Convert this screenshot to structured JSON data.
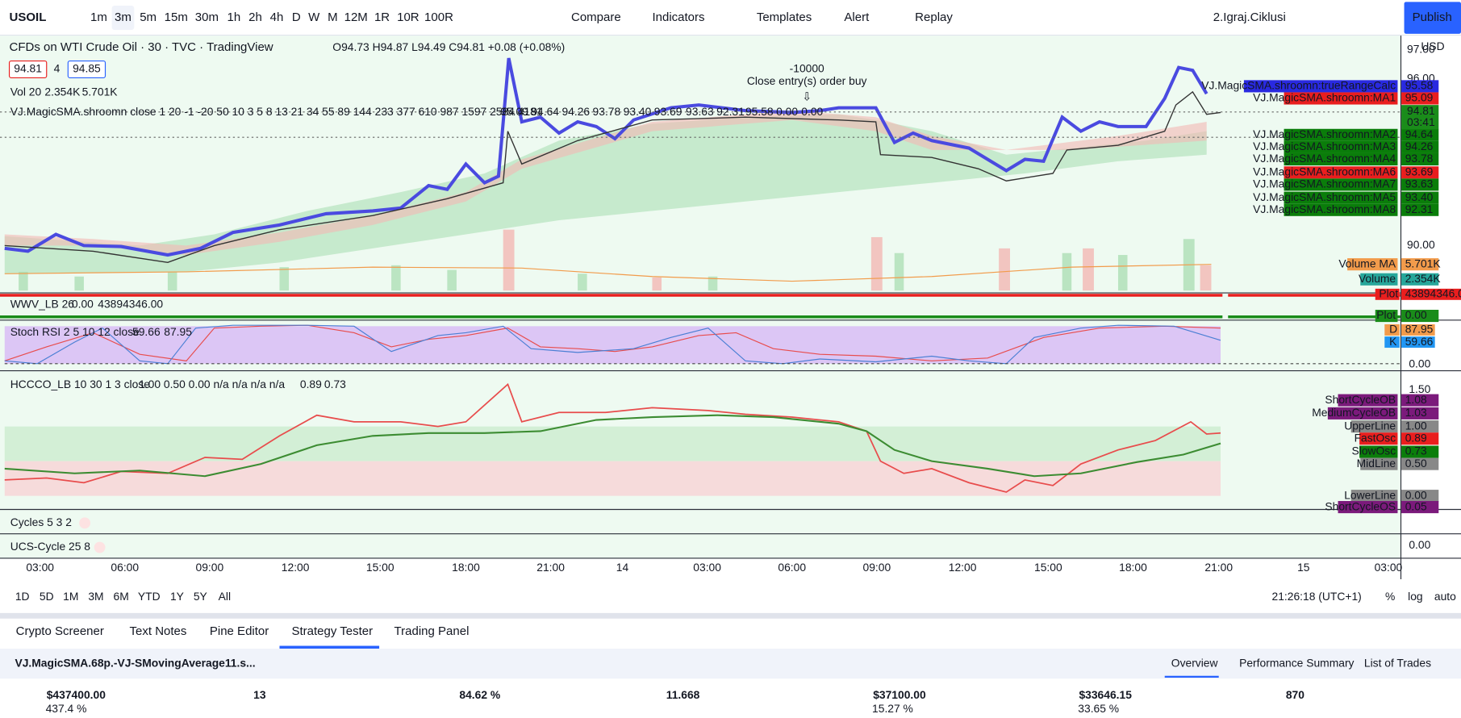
{
  "toolbar": {
    "symbol": "USOIL",
    "intervals": [
      "1m",
      "3m",
      "5m",
      "15m",
      "30m",
      "1h",
      "2h",
      "4h",
      "D",
      "W",
      "M",
      "12M",
      "1R",
      "10R",
      "100R"
    ],
    "buttons": [
      "Compare",
      "Indicators",
      "Templates",
      "Alert",
      "Replay"
    ],
    "layout": "2.Igraj.Ciklusi",
    "publish": "Publish"
  },
  "legend": {
    "title": "CFDs on WTI Crude Oil · 30 · TVC · TradingView",
    "ohlc": "O94.73 H94.87 L94.49 C94.81 +0.08 (+0.08%)",
    "bid": "94.81",
    "spread": "4",
    "ask": "94.85",
    "vol": "Vol 20",
    "vol_values": [
      "2.354K",
      "5.701K"
    ],
    "study": "VJ.MagicSMA.shroomn close 1 20 -1 -20 50 10 3 5 8 13 21 34 55 89 144 233 377 610 987 1597 2584 4181",
    "study_values": [
      "95.09",
      "94.64",
      "94.26",
      "93.78",
      "93.40",
      "93.69",
      "93.63",
      "92.31",
      "95.58",
      "0.00",
      "0.00"
    ]
  },
  "annotation": {
    "qty": "-10000",
    "text": "Close entry(s) order buy"
  },
  "price_axis": {
    "currency": "USD",
    "labels": [
      "97.00",
      "96.00",
      "90.00"
    ]
  },
  "price_tags": [
    {
      "label": "VJ.MagicSMA.shroomn:trueRangeCalc",
      "value": "95.58"
    },
    {
      "label": "VJ.MagicSMA.shroomn:MA1",
      "value": "95.09"
    },
    {
      "label": "VJ.MagicSMA.shroomn:MA2",
      "value": "94.64"
    },
    {
      "label": "VJ.MagicSMA.shroomn:MA3",
      "value": "94.26"
    },
    {
      "label": "VJ.MagicSMA.shroomn:MA4",
      "value": "93.78"
    },
    {
      "label": "VJ.MagicSMA.shroomn:MA6",
      "value": "93.69"
    },
    {
      "label": "VJ.MagicSMA.shroomn:MA7",
      "value": "93.63"
    },
    {
      "label": "VJ.MagicSMA.shroomn:MA5",
      "value": "93.40"
    },
    {
      "label": "VJ.MagicSMA.shroomn:MA8",
      "value": "92.31"
    }
  ],
  "last_price": {
    "value": "94.81",
    "countdown": "03:41"
  },
  "volume_tags": [
    {
      "label": "Volume MA",
      "value": "5.701K"
    },
    {
      "label": "Volume",
      "value": "2.354K"
    }
  ],
  "wwv": {
    "title": "WWV_LB 26",
    "values": [
      "0.00",
      "43894346.00"
    ],
    "tags": [
      {
        "label": "Plot",
        "value": "43894346.00"
      },
      {
        "label": "Plot",
        "value": "0.00"
      }
    ]
  },
  "stoch": {
    "title": "Stoch RSI 2 5 10 12 close",
    "values": [
      "59.66",
      "87.95"
    ],
    "tags": [
      {
        "label": "D",
        "value": "87.95"
      },
      {
        "label": "K",
        "value": "59.66"
      }
    ],
    "axis": "0.00"
  },
  "hccco": {
    "title": "HCCCO_LB 10 30 1 3 close",
    "params": "1.00 0.50 0.00 n/a n/a n/a n/a",
    "values": [
      "0.89",
      "0.73"
    ],
    "axis": "1.50",
    "tags": [
      {
        "label": "ShortCycleOB",
        "value": "1.08"
      },
      {
        "label": "MediumCycleOB",
        "value": "1.03"
      },
      {
        "label": "UpperLine",
        "value": "1.00"
      },
      {
        "label": "FastOsc",
        "value": "0.89"
      },
      {
        "label": "SlowOsc",
        "value": "0.73"
      },
      {
        "label": "MidLine",
        "value": "0.50"
      },
      {
        "label": "LowerLine",
        "value": "0.00"
      },
      {
        "label": "ShortCycleOS",
        "value": "0.05"
      }
    ]
  },
  "cycles": {
    "title": "Cycles 5 3 2"
  },
  "ucs": {
    "title": "UCS-Cycle 25 8",
    "axis": "0.00"
  },
  "time_axis": [
    "03:00",
    "06:00",
    "09:00",
    "12:00",
    "15:00",
    "18:00",
    "21:00",
    "14",
    "03:00",
    "06:00",
    "09:00",
    "12:00",
    "15:00",
    "18:00",
    "21:00",
    "15",
    "03:00"
  ],
  "ranges": [
    "1D",
    "5D",
    "1M",
    "3M",
    "6M",
    "YTD",
    "1Y",
    "5Y",
    "All"
  ],
  "clock": "21:26:18 (UTC+1)",
  "scale_options": [
    "%",
    "log",
    "auto"
  ],
  "bottom_tabs": [
    "Crypto Screener",
    "Text Notes",
    "Pine Editor",
    "Strategy Tester",
    "Trading Panel"
  ],
  "strategy": {
    "name": "VJ.MagicSMA.68p.-VJ-SMovingAverage11.s...",
    "tabs": [
      "Overview",
      "Performance Summary",
      "List of Trades"
    ],
    "stats": [
      {
        "value": "$437400.00",
        "sub": "437.4 %"
      },
      {
        "value": "13"
      },
      {
        "value": "84.62 %"
      },
      {
        "value": "11.668"
      },
      {
        "value": "$37100.00",
        "sub": "15.27 %"
      },
      {
        "value": "$33646.15",
        "sub": "33.65 %"
      },
      {
        "value": "870"
      }
    ]
  }
}
